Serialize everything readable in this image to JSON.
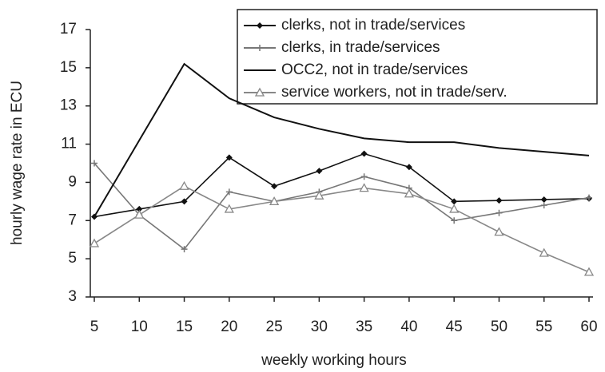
{
  "chart_data": {
    "type": "line",
    "x_label": "weekly working hours",
    "y_label": "hourly wage rate in ECU",
    "x": [
      5,
      10,
      15,
      20,
      25,
      30,
      35,
      40,
      45,
      50,
      55,
      60
    ],
    "xlim": [
      5,
      60
    ],
    "xticks": [
      5,
      10,
      15,
      20,
      25,
      30,
      35,
      40,
      45,
      50,
      55,
      60
    ],
    "ylim": [
      3,
      17
    ],
    "yticks": [
      3,
      5,
      7,
      9,
      11,
      13,
      15,
      17
    ],
    "grid": false,
    "legend": "top-right",
    "series": [
      {
        "name": "clerks, not in trade/services",
        "color": "#111111",
        "marker": "diamond",
        "values": [
          7.2,
          7.6,
          8.0,
          10.3,
          8.8,
          9.6,
          10.5,
          9.8,
          8.0,
          8.05,
          8.1,
          8.15
        ]
      },
      {
        "name": "clerks, in trade/services",
        "color": "#777777",
        "marker": "plus",
        "values": [
          10.0,
          7.3,
          5.5,
          8.5,
          8.0,
          8.5,
          9.3,
          8.7,
          7.0,
          7.4,
          7.8,
          8.2
        ]
      },
      {
        "name": "OCC2, not in trade/services",
        "color": "#111111",
        "marker": "none",
        "values": [
          7.2,
          11.2,
          15.2,
          13.4,
          12.4,
          11.8,
          11.3,
          11.1,
          11.1,
          10.8,
          10.6,
          10.4
        ]
      },
      {
        "name": "service workers, not in trade/serv.",
        "color": "#888888",
        "marker": "triangle",
        "values": [
          5.8,
          7.3,
          8.8,
          7.6,
          8.0,
          8.3,
          8.7,
          8.4,
          7.6,
          6.4,
          5.3,
          4.3
        ]
      }
    ]
  }
}
